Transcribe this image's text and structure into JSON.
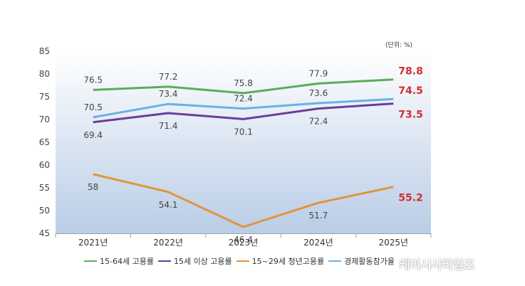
{
  "unit_label": "(단위: %)",
  "watermark": "케이시사타임즈",
  "chart_data": {
    "type": "line",
    "categories": [
      "2021년",
      "2022년",
      "2023년",
      "2024년",
      "2025년"
    ],
    "ylim": [
      45,
      85
    ],
    "yticks": [
      45,
      50,
      55,
      60,
      65,
      70,
      75,
      80,
      85
    ],
    "grid": false,
    "legend_position": "bottom",
    "highlight_color": "#d32f2f",
    "series": [
      {
        "name": "15-64세 고용률",
        "color": "#5aad5a",
        "values": [
          76.5,
          77.2,
          75.8,
          77.9,
          78.8
        ],
        "labels": [
          "76.5",
          "77.2",
          "75.8",
          "77.9",
          "78.8"
        ],
        "label_pos": "above"
      },
      {
        "name": "15세 이상 고용률",
        "color": "#6a3d9a",
        "values": [
          69.4,
          71.4,
          70.1,
          72.4,
          73.5
        ],
        "labels": [
          "69.4",
          "71.4",
          "70.1",
          "72.4",
          "73.5"
        ],
        "label_pos": "below"
      },
      {
        "name": "15~29세 청년고용률",
        "color": "#e0953b",
        "values": [
          58.0,
          54.1,
          46.4,
          51.7,
          55.2
        ],
        "labels": [
          "58",
          "54.1",
          "46.4",
          "51.7",
          "55.2"
        ],
        "label_pos": "below"
      },
      {
        "name": "경제활동참가율",
        "color": "#6ab0e6",
        "values": [
          70.5,
          73.4,
          72.4,
          73.6,
          74.5
        ],
        "labels": [
          "70.5",
          "73.4",
          "72.4",
          "73.6",
          "74.5"
        ],
        "label_pos": "above"
      }
    ]
  }
}
